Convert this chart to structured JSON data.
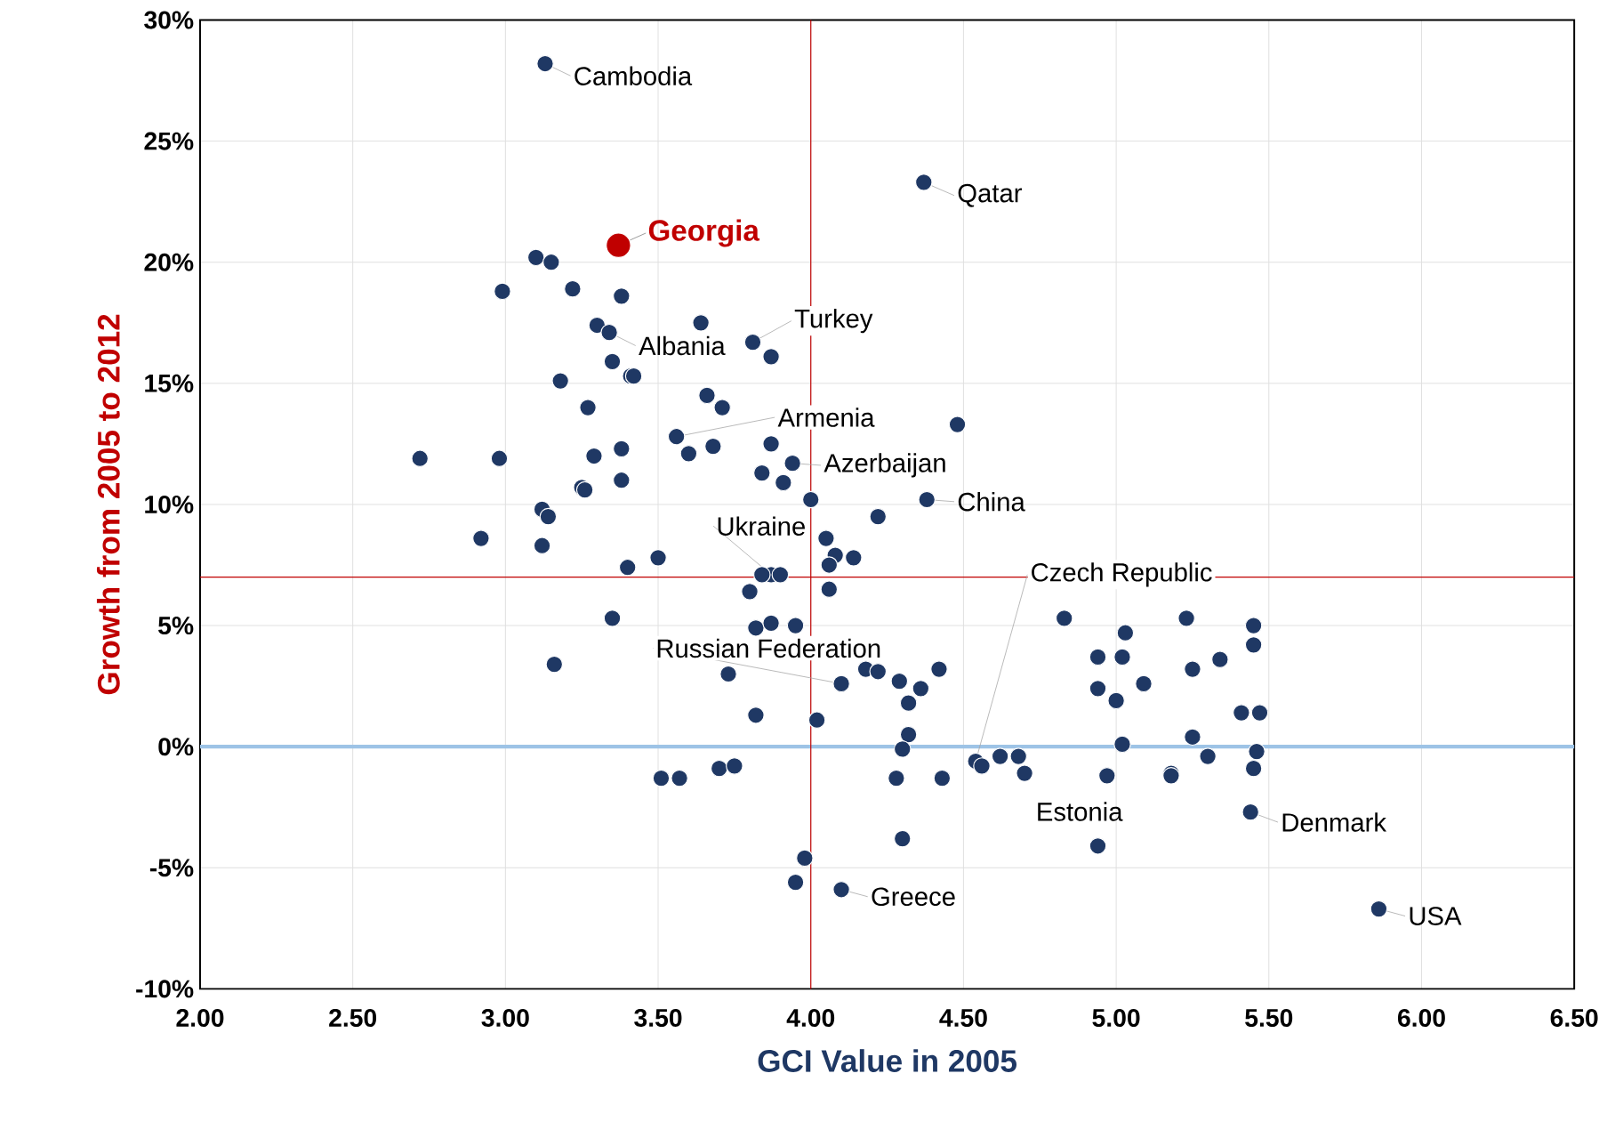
{
  "chart_data": {
    "type": "scatter",
    "xlabel": "GCI Value in 2005",
    "ylabel": "Growth from 2005 to 2012",
    "xlim": [
      2,
      6.5
    ],
    "ylim": [
      -10,
      30
    ],
    "xticks": [
      {
        "value": 2,
        "label": "2.00"
      },
      {
        "value": 2.5,
        "label": "2.50"
      },
      {
        "value": 3,
        "label": "3.00"
      },
      {
        "value": 3.5,
        "label": "3.50"
      },
      {
        "value": 4,
        "label": "4.00"
      },
      {
        "value": 4.5,
        "label": "4.50"
      },
      {
        "value": 5,
        "label": "5.00"
      },
      {
        "value": 5.5,
        "label": "5.50"
      },
      {
        "value": 6,
        "label": "6.00"
      },
      {
        "value": 6.5,
        "label": "6.50"
      }
    ],
    "yticks": [
      {
        "value": -10,
        "label": "-10%"
      },
      {
        "value": -5,
        "label": "-5%"
      },
      {
        "value": 0,
        "label": "0%"
      },
      {
        "value": 5,
        "label": "5%"
      },
      {
        "value": 10,
        "label": "10%"
      },
      {
        "value": 15,
        "label": "15%"
      },
      {
        "value": 20,
        "label": "20%"
      },
      {
        "value": 25,
        "label": "25%"
      },
      {
        "value": 30,
        "label": "30%"
      }
    ],
    "grid": true,
    "marker": "circle",
    "ref_lines": [
      {
        "axis": "y",
        "value": 0,
        "color": "#9dc3e6"
      },
      {
        "axis": "x",
        "value": 4,
        "color": "#c00000"
      },
      {
        "axis": "y",
        "value": 7,
        "color": "#c00000"
      }
    ],
    "series": [
      {
        "type": "scatter",
        "color": "#1f3864",
        "x": [
          3.13,
          4.37,
          3.1,
          3.15,
          2.99,
          3.22,
          3.38,
          3.64,
          3.3,
          3.34,
          3.81,
          3.87,
          3.35,
          3.41,
          3.42,
          3.18,
          3.66,
          3.71,
          3.27,
          4.48,
          3.56,
          3.68,
          3.87,
          3.38,
          2.72,
          2.98,
          3.29,
          3.6,
          3.94,
          3.84,
          3.91,
          3.38,
          3.25,
          3.26,
          4.0,
          4.38,
          3.12,
          3.14,
          4.22,
          2.92,
          3.12,
          4.05,
          3.87,
          4.08,
          4.14,
          4.06,
          3.5,
          3.4,
          3.84,
          3.9,
          3.8,
          4.06,
          3.35,
          4.83,
          5.23,
          5.45,
          3.82,
          3.87,
          3.95,
          5.03,
          5.45,
          4.94,
          5.02,
          5.34,
          3.16,
          5.25,
          4.18,
          4.22,
          4.42,
          3.73,
          4.29,
          4.1,
          4.36,
          5.09,
          4.94,
          5.0,
          4.32,
          5.41,
          5.47,
          3.82,
          4.02,
          4.32,
          5.25,
          5.02,
          4.3,
          5.46,
          5.3,
          4.62,
          4.68,
          4.54,
          4.56,
          5.45,
          3.7,
          3.75,
          4.7,
          4.97,
          5.18,
          5.18,
          4.28,
          3.51,
          3.57,
          4.43,
          5.44,
          4.94,
          4.3,
          3.98,
          3.95,
          4.1,
          5.86
        ],
        "values": [
          28.2,
          23.3,
          20.2,
          20.0,
          18.8,
          18.9,
          18.6,
          17.5,
          17.4,
          17.1,
          16.7,
          16.1,
          15.9,
          15.3,
          15.3,
          15.1,
          14.5,
          14.0,
          14.0,
          13.3,
          12.8,
          12.4,
          12.5,
          12.3,
          11.9,
          11.9,
          12.0,
          12.1,
          11.7,
          11.3,
          10.9,
          11.0,
          10.7,
          10.6,
          10.2,
          10.2,
          9.8,
          9.5,
          9.5,
          8.6,
          8.3,
          8.6,
          7.1,
          7.9,
          7.8,
          7.5,
          7.8,
          7.4,
          7.1,
          7.1,
          6.4,
          6.5,
          5.3,
          5.3,
          5.3,
          5.0,
          4.9,
          5.1,
          5.0,
          4.7,
          4.2,
          3.7,
          3.7,
          3.6,
          3.4,
          3.2,
          3.2,
          3.1,
          3.2,
          3.0,
          2.7,
          2.6,
          2.4,
          2.6,
          2.4,
          1.9,
          1.8,
          1.4,
          1.4,
          1.3,
          1.1,
          0.5,
          0.4,
          0.1,
          -0.1,
          -0.2,
          -0.4,
          -0.4,
          -0.4,
          -0.6,
          -0.8,
          -0.9,
          -0.9,
          -0.8,
          -1.1,
          -1.2,
          -1.1,
          -1.2,
          -1.3,
          -1.3,
          -1.3,
          -1.3,
          -2.7,
          -4.1,
          -3.8,
          -4.6,
          -5.6,
          -5.9,
          -6.7
        ]
      },
      {
        "type": "scatter",
        "name": "Georgia",
        "color": "#c00000",
        "x": [
          3.37
        ],
        "values": [
          20.7
        ]
      }
    ],
    "annotations": [
      {
        "text": "Cambodia",
        "x": 3.13,
        "y": 28.2
      },
      {
        "text": "Qatar",
        "x": 4.37,
        "y": 23.3
      },
      {
        "text": "Turkey",
        "x": 3.81,
        "y": 16.7
      },
      {
        "text": "Albania",
        "x": 3.34,
        "y": 17.1
      },
      {
        "text": "Armenia",
        "x": 3.56,
        "y": 12.8
      },
      {
        "text": "Azerbaijan",
        "x": 3.94,
        "y": 11.7
      },
      {
        "text": "China",
        "x": 4.38,
        "y": 10.2
      },
      {
        "text": "Ukraine",
        "x": 3.87,
        "y": 7.1
      },
      {
        "text": "Czech Republic",
        "x": 4.54,
        "y": -0.6
      },
      {
        "text": "Russian Federation",
        "x": 4.1,
        "y": 2.6
      },
      {
        "text": "Estonia",
        "x": 4.94,
        "y": -4.1
      },
      {
        "text": "Denmark",
        "x": 5.44,
        "y": -2.7
      },
      {
        "text": "Greece",
        "x": 4.1,
        "y": -5.9
      },
      {
        "text": "USA",
        "x": 5.86,
        "y": -6.7
      }
    ]
  }
}
